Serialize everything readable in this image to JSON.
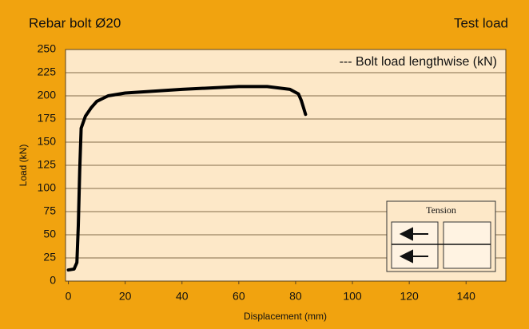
{
  "chart_data": {
    "type": "line",
    "title": "Rebar bolt Ø20",
    "subtitle": "Test load",
    "x_label": "Displacement (mm)",
    "y_label": "Load (kN)",
    "annotation": "Tension",
    "x": [
      0,
      2,
      3,
      3.5,
      4,
      4.5,
      6,
      8,
      10,
      14,
      20,
      40,
      60,
      70,
      78,
      81,
      82,
      83.5
    ],
    "series": [
      {
        "name": "--- Bolt load lengthwise (kN)",
        "color": "#000000",
        "values": [
          12,
          13,
          20,
          60,
          120,
          165,
          178,
          187,
          194,
          200,
          203,
          207,
          210,
          210,
          207,
          202,
          195,
          180
        ]
      }
    ],
    "xlim": [
      -1,
      154
    ],
    "xticks": [
      0,
      20,
      40,
      60,
      80,
      100,
      120,
      140
    ],
    "ylim": [
      0,
      250
    ],
    "yticks": [
      0,
      25,
      50,
      75,
      100,
      125,
      150,
      175,
      200,
      225,
      250
    ],
    "grid": true,
    "legend": "top-right"
  }
}
